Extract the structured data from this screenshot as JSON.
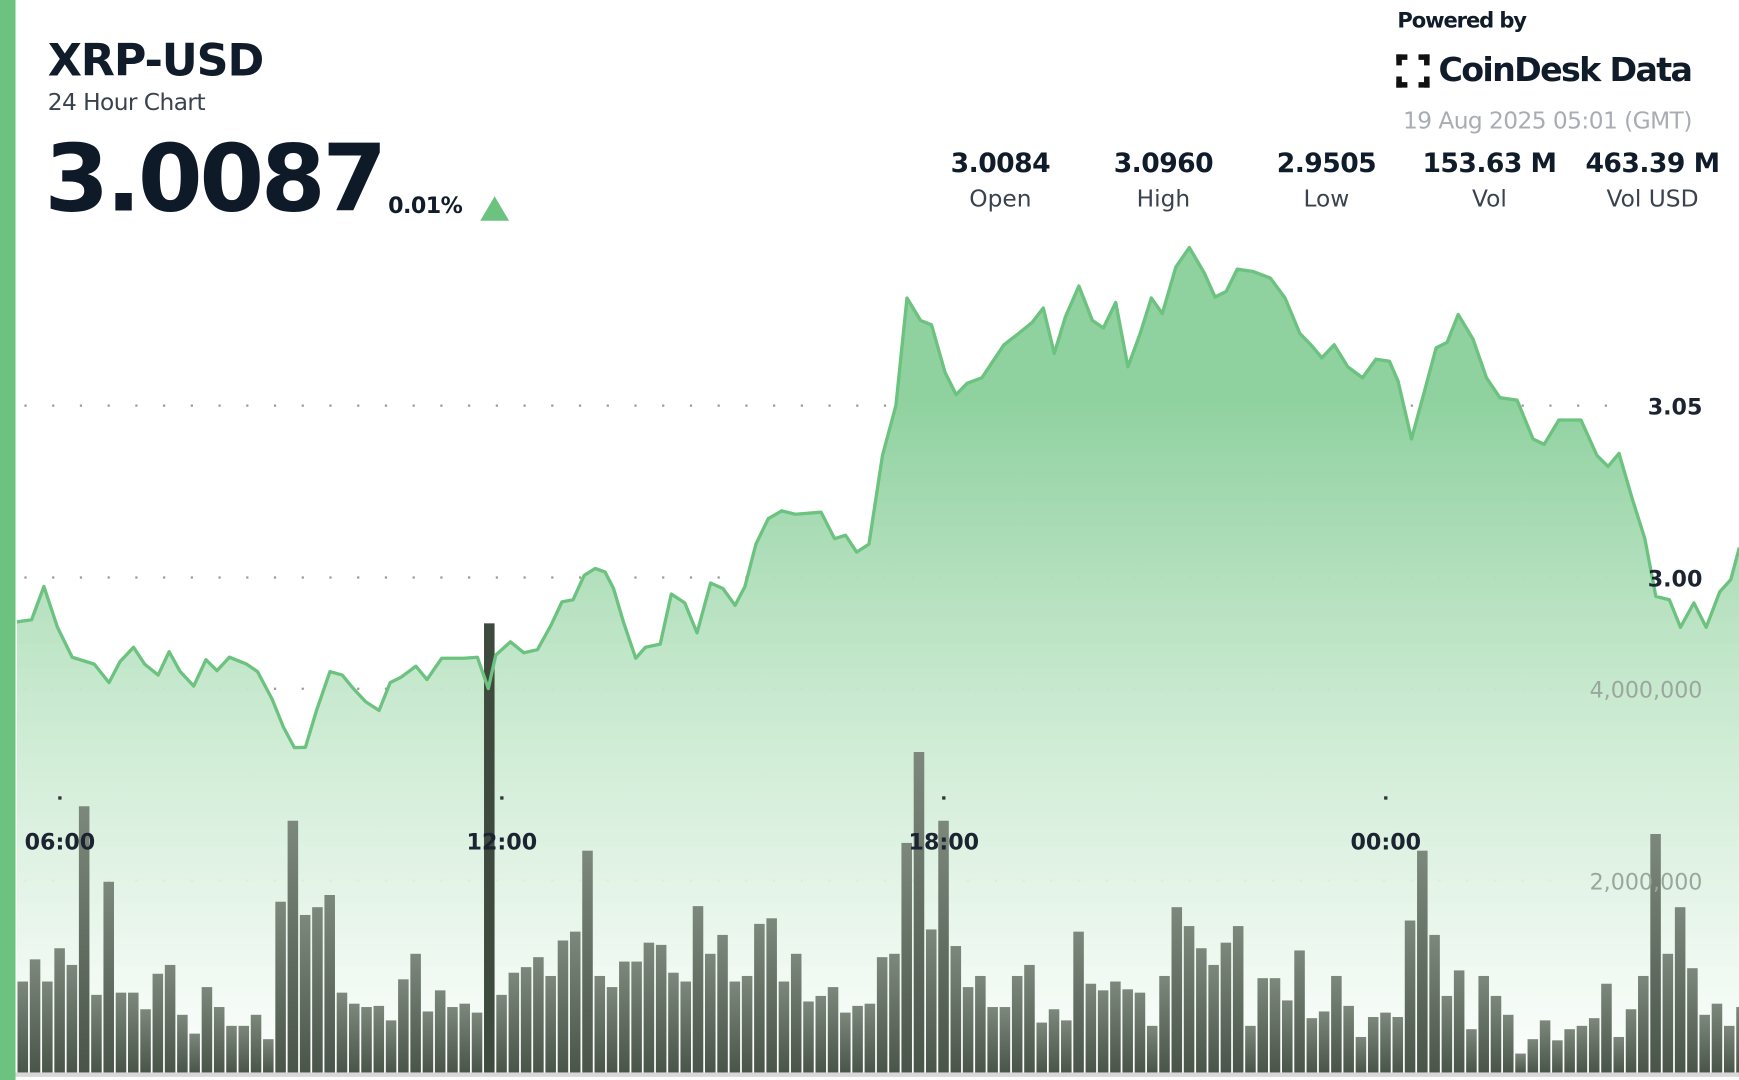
{
  "header": {
    "symbol": "XRP-USD",
    "subtitle": "24 Hour Chart",
    "price": "3.0087",
    "change_pct": "0.01%",
    "change_direction": "up",
    "powered_by": "Powered by",
    "brand": "CoinDesk Data",
    "timestamp": "19 Aug 2025 05:01 (GMT)"
  },
  "stats": [
    {
      "value": "3.0084",
      "label": "Open"
    },
    {
      "value": "3.0960",
      "label": "High"
    },
    {
      "value": "2.9505",
      "label": "Low"
    },
    {
      "value": "153.63 M",
      "label": "Vol"
    },
    {
      "value": "463.39 M",
      "label": "Vol USD"
    }
  ],
  "colors": {
    "accent": "#6cc27f",
    "line": "#6cc27f",
    "volume_bar": "#5d685d",
    "text": "#111c2b"
  },
  "icons": {
    "change": "triangle-up-icon",
    "logo": "coindesk-logo-icon"
  },
  "chart_data": {
    "type": "area",
    "grid": "dotted-horizontal",
    "x_ticks": [
      "06:00",
      "12:00",
      "18:00",
      "00:00"
    ],
    "price_ticks": [
      {
        "label": "3.05",
        "value": 3.05
      },
      {
        "label": "3.00",
        "value": 3.0
      }
    ],
    "volume_ticks": [
      {
        "label": "4,000,000",
        "value": 4000000
      },
      {
        "label": "2,000,000",
        "value": 2000000
      }
    ],
    "price_ylim": [
      2.856,
      3.168
    ],
    "volume_ylim": [
      0,
      11180000
    ],
    "price": [
      [
        "05:25",
        2.9871
      ],
      [
        "05:37",
        2.9877
      ],
      [
        "05:47",
        2.9974
      ],
      [
        "05:58",
        2.9855
      ],
      [
        "06:10",
        2.9768
      ],
      [
        "06:28",
        2.9748
      ],
      [
        "06:40",
        2.9694
      ],
      [
        "06:49",
        2.9755
      ],
      [
        "07:00",
        2.9797
      ],
      [
        "07:09",
        2.9748
      ],
      [
        "07:20",
        2.9716
      ],
      [
        "07:29",
        2.9784
      ],
      [
        "07:38",
        2.9726
      ],
      [
        "07:49",
        2.9684
      ],
      [
        "07:59",
        2.9761
      ],
      [
        "08:08",
        2.9729
      ],
      [
        "08:18",
        2.9768
      ],
      [
        "08:32",
        2.9748
      ],
      [
        "08:41",
        2.9726
      ],
      [
        "08:53",
        2.9645
      ],
      [
        "09:02",
        2.9565
      ],
      [
        "09:11",
        2.9505
      ],
      [
        "09:20",
        2.9506
      ],
      [
        "09:29",
        2.9613
      ],
      [
        "09:40",
        2.9726
      ],
      [
        "09:50",
        2.9716
      ],
      [
        "09:59",
        2.9677
      ],
      [
        "10:09",
        2.9639
      ],
      [
        "10:20",
        2.9613
      ],
      [
        "10:29",
        2.9694
      ],
      [
        "10:38",
        2.971
      ],
      [
        "10:50",
        2.9742
      ],
      [
        "10:59",
        2.9703
      ],
      [
        "11:11",
        2.9765
      ],
      [
        "11:29",
        2.9765
      ],
      [
        "11:40",
        2.9768
      ],
      [
        "11:49",
        2.9677
      ],
      [
        "11:55",
        2.9774
      ],
      [
        "12:07",
        2.9813
      ],
      [
        "12:18",
        2.9781
      ],
      [
        "12:29",
        2.979
      ],
      [
        "12:40",
        2.9861
      ],
      [
        "12:49",
        2.9929
      ],
      [
        "12:58",
        2.9935
      ],
      [
        "13:07",
        3.0006
      ],
      [
        "13:16",
        3.0026
      ],
      [
        "13:24",
        3.0016
      ],
      [
        "13:31",
        2.9968
      ],
      [
        "13:39",
        2.9871
      ],
      [
        "13:49",
        2.9765
      ],
      [
        "13:57",
        2.9797
      ],
      [
        "14:09",
        2.9806
      ],
      [
        "14:18",
        2.9952
      ],
      [
        "14:29",
        2.9926
      ],
      [
        "14:39",
        2.9839
      ],
      [
        "14:50",
        2.9984
      ],
      [
        "15:00",
        2.9968
      ],
      [
        "15:10",
        2.9919
      ],
      [
        "15:18",
        2.9974
      ],
      [
        "15:27",
        3.0097
      ],
      [
        "15:37",
        3.0171
      ],
      [
        "15:48",
        3.0194
      ],
      [
        "15:59",
        3.0184
      ],
      [
        "16:20",
        3.019
      ],
      [
        "16:31",
        3.0113
      ],
      [
        "16:40",
        3.0123
      ],
      [
        "16:49",
        3.0074
      ],
      [
        "16:59",
        3.0097
      ],
      [
        "17:10",
        3.0355
      ],
      [
        "17:21",
        3.05
      ],
      [
        "17:30",
        3.0813
      ],
      [
        "17:41",
        3.0748
      ],
      [
        "17:50",
        3.0735
      ],
      [
        "18:01",
        3.0597
      ],
      [
        "18:10",
        3.0532
      ],
      [
        "18:19",
        3.0565
      ],
      [
        "18:31",
        3.0581
      ],
      [
        "18:40",
        3.0629
      ],
      [
        "18:49",
        3.0677
      ],
      [
        "19:01",
        3.071
      ],
      [
        "19:12",
        3.0742
      ],
      [
        "19:21",
        3.0784
      ],
      [
        "19:30",
        3.0652
      ],
      [
        "19:39",
        3.0758
      ],
      [
        "19:50",
        3.0848
      ],
      [
        "20:01",
        3.0748
      ],
      [
        "20:10",
        3.0726
      ],
      [
        "20:20",
        3.08
      ],
      [
        "20:30",
        3.0613
      ],
      [
        "20:40",
        3.071
      ],
      [
        "20:49",
        3.0813
      ],
      [
        "20:58",
        3.0768
      ],
      [
        "21:09",
        3.0903
      ],
      [
        "21:20",
        3.096
      ],
      [
        "21:32",
        3.0887
      ],
      [
        "21:41",
        3.0816
      ],
      [
        "21:50",
        3.0832
      ],
      [
        "21:59",
        3.0897
      ],
      [
        "22:12",
        3.089
      ],
      [
        "22:26",
        3.0871
      ],
      [
        "22:38",
        3.0813
      ],
      [
        "22:50",
        3.071
      ],
      [
        "22:59",
        3.0677
      ],
      [
        "23:08",
        3.0639
      ],
      [
        "23:18",
        3.0677
      ],
      [
        "23:29",
        3.0613
      ],
      [
        "23:41",
        3.0581
      ],
      [
        "23:52",
        3.0635
      ],
      [
        "00:03",
        3.0629
      ],
      [
        "00:10",
        3.0571
      ],
      [
        "00:21",
        3.0403
      ],
      [
        "00:32",
        3.0548
      ],
      [
        "00:41",
        3.0668
      ],
      [
        "00:50",
        3.0684
      ],
      [
        "00:59",
        3.0765
      ],
      [
        "01:11",
        3.0694
      ],
      [
        "01:22",
        3.0581
      ],
      [
        "01:33",
        3.0523
      ],
      [
        "01:47",
        3.0516
      ],
      [
        "02:00",
        3.0403
      ],
      [
        "02:09",
        3.0387
      ],
      [
        "02:21",
        3.0458
      ],
      [
        "02:39",
        3.0458
      ],
      [
        "02:52",
        3.0355
      ],
      [
        "03:01",
        3.0323
      ],
      [
        "03:10",
        3.0361
      ],
      [
        "03:21",
        3.0226
      ],
      [
        "03:31",
        3.0113
      ],
      [
        "03:40",
        2.9945
      ],
      [
        "03:51",
        2.9935
      ],
      [
        "04:00",
        2.9855
      ],
      [
        "04:11",
        2.9926
      ],
      [
        "04:21",
        2.9855
      ],
      [
        "04:32",
        2.9958
      ],
      [
        "04:41",
        2.9994
      ],
      [
        "04:48",
        3.0087
      ]
    ],
    "volume": {
      "times": [
        "05:30",
        "05:40",
        "05:50",
        "06:00",
        "06:10",
        "06:20",
        "06:30",
        "06:40",
        "06:50",
        "07:00",
        "07:10",
        "07:20",
        "07:30",
        "07:40",
        "07:50",
        "08:00",
        "08:10",
        "08:20",
        "08:30",
        "08:40",
        "08:50",
        "09:00",
        "09:10",
        "09:20",
        "09:30",
        "09:40",
        "09:50",
        "10:00",
        "10:10",
        "10:20",
        "10:30",
        "10:40",
        "10:50",
        "11:00",
        "11:10",
        "11:20",
        "11:30",
        "11:40",
        "11:50",
        "12:00",
        "12:10",
        "12:20",
        "12:30",
        "12:40",
        "12:50",
        "13:00",
        "13:10",
        "13:20",
        "13:30",
        "13:40",
        "13:50",
        "14:00",
        "14:10",
        "14:20",
        "14:30",
        "14:40",
        "14:50",
        "15:00",
        "15:10",
        "15:20",
        "15:30",
        "15:40",
        "15:50",
        "16:00",
        "16:10",
        "16:20",
        "16:30",
        "16:40",
        "16:50",
        "17:00",
        "17:10",
        "17:20",
        "17:30",
        "17:40",
        "17:50",
        "18:00",
        "18:10",
        "18:20",
        "18:30",
        "18:40",
        "18:50",
        "19:00",
        "19:10",
        "19:20",
        "19:30",
        "19:40",
        "19:50",
        "20:00",
        "20:10",
        "20:20",
        "20:30",
        "20:40",
        "20:50",
        "21:00",
        "21:10",
        "21:20",
        "21:30",
        "21:40",
        "21:50",
        "22:00",
        "22:10",
        "22:20",
        "22:30",
        "22:40",
        "22:50",
        "23:00",
        "23:10",
        "23:20",
        "23:30",
        "23:40",
        "23:50",
        "00:00",
        "00:10",
        "00:20",
        "00:30",
        "00:40",
        "00:50",
        "01:00",
        "01:10",
        "01:20",
        "01:30",
        "01:40",
        "01:50",
        "02:00",
        "02:10",
        "02:20",
        "02:30",
        "02:40",
        "02:50",
        "03:00",
        "03:10",
        "03:20",
        "03:30",
        "03:40",
        "03:50",
        "04:00",
        "04:10",
        "04:20",
        "04:30",
        "04:40",
        "04:50"
      ],
      "values": [
        948000,
        1179000,
        948000,
        1295000,
        1121000,
        2775000,
        809000,
        1988000,
        832000,
        832000,
        659000,
        1029000,
        1121000,
        601000,
        405000,
        890000,
        682000,
        486000,
        486000,
        601000,
        347000,
        1780000,
        2624000,
        1642000,
        1723000,
        1850000,
        832000,
        717000,
        682000,
        694000,
        543000,
        971000,
        1237000,
        636000,
        856000,
        682000,
        717000,
        624000,
        4682000,
        809000,
        1040000,
        1098000,
        1202000,
        1006000,
        1376000,
        1468000,
        2312000,
        1006000,
        890000,
        1156000,
        1156000,
        1353000,
        1330000,
        1040000,
        948000,
        1734000,
        1237000,
        1434000,
        948000,
        1006000,
        1549000,
        1607000,
        948000,
        1237000,
        740000,
        798000,
        890000,
        624000,
        694000,
        717000,
        1202000,
        1237000,
        2393000,
        3341000,
        1491000,
        2624000,
        1318000,
        890000,
        1006000,
        682000,
        682000,
        1006000,
        1121000,
        520000,
        659000,
        543000,
        1468000,
        925000,
        856000,
        948000,
        867000,
        832000,
        486000,
        1006000,
        1723000,
        1526000,
        1295000,
        1121000,
        1353000,
        1526000,
        486000,
        983000,
        983000,
        751000,
        1272000,
        566000,
        636000,
        1006000,
        694000,
        370000,
        578000,
        624000,
        578000,
        1584000,
        2312000,
        1434000,
        798000,
        1064000,
        451000,
        1006000,
        798000,
        601000,
        197000,
        347000,
        543000,
        335000,
        451000,
        486000,
        566000,
        925000,
        370000,
        659000,
        1006000,
        2486000,
        1237000,
        1723000,
        1087000,
        601000,
        717000,
        486000,
        682000
      ],
      "highlighted_time": "11:50"
    }
  }
}
